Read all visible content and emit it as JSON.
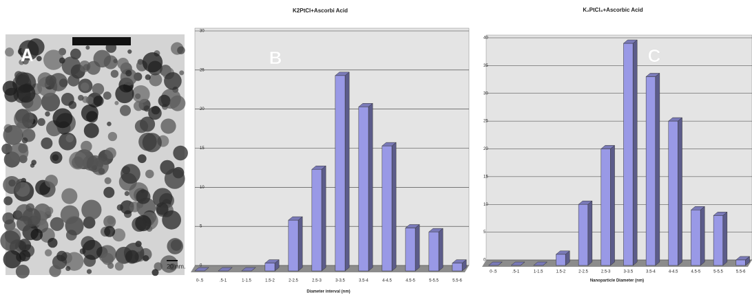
{
  "image_panel": {
    "label": "A",
    "scale_bar": "20 nm."
  },
  "chart_data": [
    {
      "type": "bar",
      "title": "K2PtCl+Ascorbi Acid",
      "panel_label": "B",
      "x_label": "Diameter interval (nm)",
      "categories": [
        "0-.5",
        ".5-1",
        "1-1.5",
        "1.5-2",
        "2-2.5",
        "2.5-3",
        "3-3.5",
        "3.5-4",
        "4-4.5",
        "4.5-5",
        "5-5.5",
        "5.5-6"
      ],
      "values": [
        0,
        0,
        0,
        1,
        6.5,
        13,
        25,
        21,
        16,
        5.5,
        5,
        1
      ],
      "color": "#9999e6",
      "ylim": [
        0,
        30
      ],
      "yticks": [
        0,
        5,
        10,
        15,
        20,
        25,
        30
      ],
      "grid": true
    },
    {
      "type": "bar",
      "title": "K₂PtCl₄+Ascorbic Acid",
      "panel_label": "C",
      "x_label": "Nanoparticle Diameter (nm)",
      "categories": [
        "0-.5",
        ".5-1",
        "1-1.5",
        "1.5-2",
        "2-2.5",
        "2.5-3",
        "3-3.5",
        "3.5-4",
        "4-4.5",
        "4.5-5",
        "5-5.5",
        "5.5-6"
      ],
      "values": [
        0,
        0,
        0,
        2,
        11,
        21,
        40,
        34,
        26,
        10,
        9,
        1
      ],
      "color": "#9999e6",
      "ylim": [
        0,
        40
      ],
      "yticks": [
        0,
        5,
        10,
        15,
        20,
        25,
        30,
        35,
        40
      ],
      "grid": true
    }
  ]
}
